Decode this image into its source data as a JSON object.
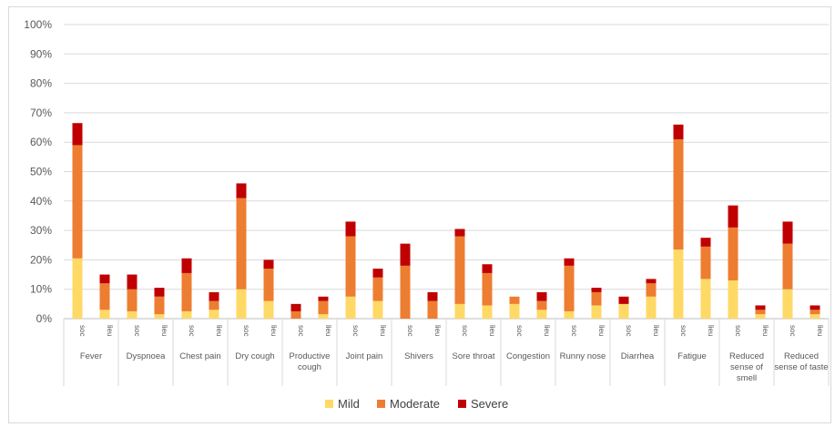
{
  "chart_data": {
    "type": "bar",
    "stacked": true,
    "ylim": [
      0,
      100
    ],
    "ytick_labels": [
      "0%",
      "10%",
      "20%",
      "30%",
      "40%",
      "50%",
      "60%",
      "70%",
      "80%",
      "90%",
      "100%"
    ],
    "grid": true,
    "legend_position": "bottom",
    "colors": {
      "Mild": "#FFD966",
      "Moderate": "#ED7D31",
      "Severe": "#C00000"
    },
    "groups": [
      {
        "label": [
          "Fever"
        ],
        "bars": [
          {
            "sub": "soc",
            "Mild": 20.5,
            "Moderate": 38.5,
            "Severe": 7.5
          },
          {
            "sub": "lieu",
            "Mild": 3,
            "Moderate": 9,
            "Severe": 3
          }
        ]
      },
      {
        "label": [
          "Dyspnoea"
        ],
        "bars": [
          {
            "sub": "soc",
            "Mild": 2.5,
            "Moderate": 7.5,
            "Severe": 5
          },
          {
            "sub": "lieu",
            "Mild": 1.5,
            "Moderate": 6,
            "Severe": 3
          }
        ]
      },
      {
        "label": [
          "Chest pain"
        ],
        "bars": [
          {
            "sub": "soc",
            "Mild": 2.5,
            "Moderate": 13,
            "Severe": 5
          },
          {
            "sub": "lieu",
            "Mild": 3,
            "Moderate": 3,
            "Severe": 3
          }
        ]
      },
      {
        "label": [
          "Dry cough"
        ],
        "bars": [
          {
            "sub": "soc",
            "Mild": 10,
            "Moderate": 31,
            "Severe": 5
          },
          {
            "sub": "lieu",
            "Mild": 6,
            "Moderate": 11,
            "Severe": 3
          }
        ]
      },
      {
        "label": [
          "Productive",
          "cough"
        ],
        "bars": [
          {
            "sub": "soc",
            "Mild": 0,
            "Moderate": 2.5,
            "Severe": 2.5
          },
          {
            "sub": "lieu",
            "Mild": 1.5,
            "Moderate": 4.5,
            "Severe": 1.5
          }
        ]
      },
      {
        "label": [
          "Joint pain"
        ],
        "bars": [
          {
            "sub": "soc",
            "Mild": 7.5,
            "Moderate": 20.5,
            "Severe": 5
          },
          {
            "sub": "lieu",
            "Mild": 6,
            "Moderate": 8,
            "Severe": 3
          }
        ]
      },
      {
        "label": [
          "Shivers"
        ],
        "bars": [
          {
            "sub": "soc",
            "Mild": 0,
            "Moderate": 18,
            "Severe": 7.5
          },
          {
            "sub": "lieu",
            "Mild": 0,
            "Moderate": 6,
            "Severe": 3
          }
        ]
      },
      {
        "label": [
          "Sore throat"
        ],
        "bars": [
          {
            "sub": "soc",
            "Mild": 5,
            "Moderate": 23,
            "Severe": 2.5
          },
          {
            "sub": "lieu",
            "Mild": 4.5,
            "Moderate": 11,
            "Severe": 3
          }
        ]
      },
      {
        "label": [
          "Congestion"
        ],
        "bars": [
          {
            "sub": "soc",
            "Mild": 5,
            "Moderate": 2.5,
            "Severe": 0
          },
          {
            "sub": "lieu",
            "Mild": 3,
            "Moderate": 3,
            "Severe": 3
          }
        ]
      },
      {
        "label": [
          "Runny nose"
        ],
        "bars": [
          {
            "sub": "soc",
            "Mild": 2.5,
            "Moderate": 15.5,
            "Severe": 2.5
          },
          {
            "sub": "lieu",
            "Mild": 4.5,
            "Moderate": 4.5,
            "Severe": 1.5
          }
        ]
      },
      {
        "label": [
          "Diarrhea"
        ],
        "bars": [
          {
            "sub": "soc",
            "Mild": 5,
            "Moderate": 0,
            "Severe": 2.5
          },
          {
            "sub": "lieu",
            "Mild": 7.5,
            "Moderate": 4.5,
            "Severe": 1.5
          }
        ]
      },
      {
        "label": [
          "Fatigue"
        ],
        "bars": [
          {
            "sub": "soc",
            "Mild": 23.5,
            "Moderate": 37.5,
            "Severe": 5
          },
          {
            "sub": "lieu",
            "Mild": 13.5,
            "Moderate": 11,
            "Severe": 3
          }
        ]
      },
      {
        "label": [
          "Reduced",
          "sense of",
          "smell"
        ],
        "bars": [
          {
            "sub": "soc",
            "Mild": 13,
            "Moderate": 18,
            "Severe": 7.5
          },
          {
            "sub": "lieu",
            "Mild": 1.5,
            "Moderate": 1.5,
            "Severe": 1.5
          }
        ]
      },
      {
        "label": [
          "Reduced",
          "sense of taste"
        ],
        "bars": [
          {
            "sub": "soc",
            "Mild": 10,
            "Moderate": 15.5,
            "Severe": 7.5
          },
          {
            "sub": "lieu",
            "Mild": 1.5,
            "Moderate": 1.5,
            "Severe": 1.5
          }
        ]
      }
    ],
    "legend": [
      "Mild",
      "Moderate",
      "Severe"
    ]
  }
}
